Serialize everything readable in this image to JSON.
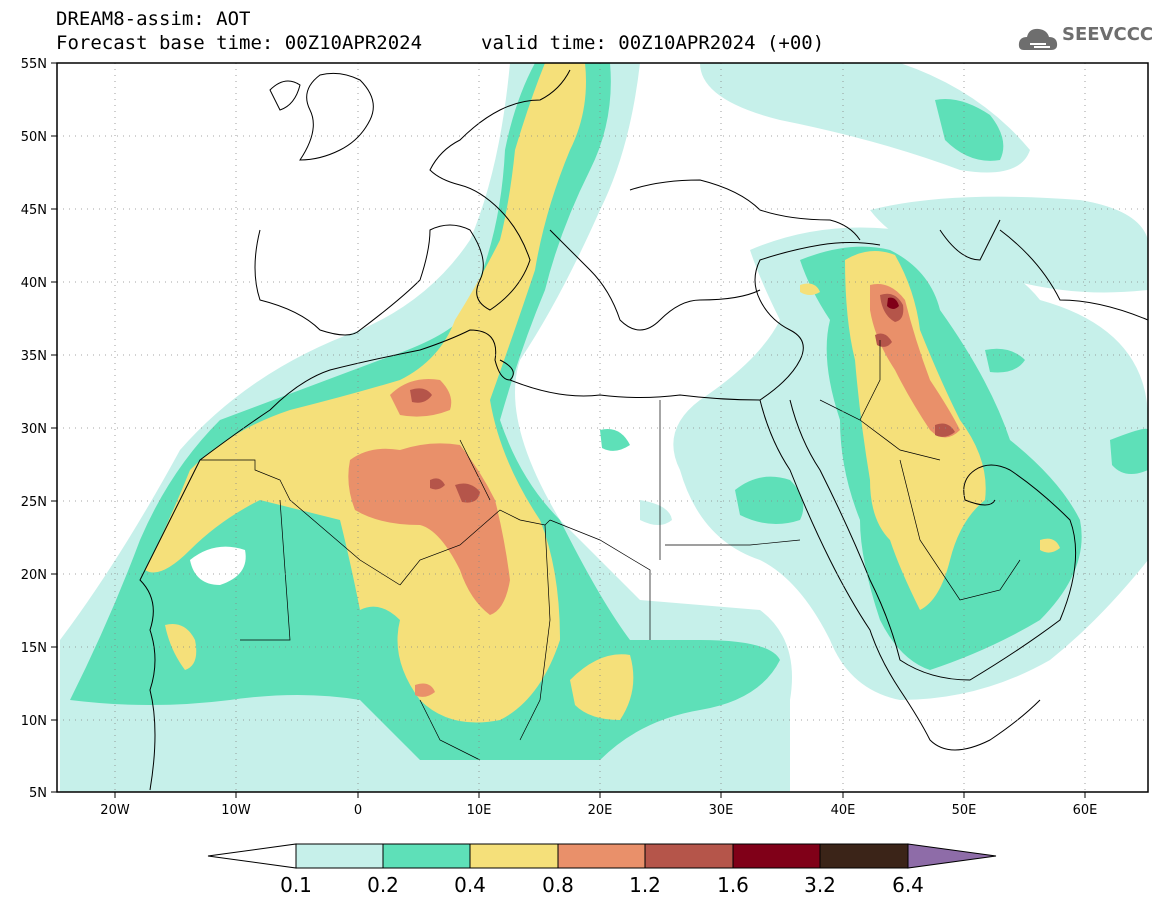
{
  "title": {
    "line1": "DREAM8-assim: AOT",
    "base_time": "Forecast base time: 00Z10APR2024",
    "valid_time": "valid time: 00Z10APR2024 (+00)"
  },
  "logo": {
    "text": "SEEVCCC",
    "icon": "cloud-icon"
  },
  "map": {
    "lon_range": [
      -25,
      65
    ],
    "lat_range": [
      5,
      55
    ],
    "lat_labels": [
      "55N",
      "50N",
      "45N",
      "40N",
      "35N",
      "30N",
      "25N",
      "20N",
      "15N",
      "10N",
      "5N"
    ],
    "lon_labels": [
      "20W",
      "10W",
      "0",
      "10E",
      "20E",
      "30E",
      "40E",
      "50E",
      "60E"
    ]
  },
  "colorbar": {
    "labels": [
      "0.1",
      "0.2",
      "0.4",
      "0.8",
      "1.2",
      "1.6",
      "3.2",
      "6.4"
    ],
    "colors": [
      "#ffffff",
      "#c6f0ea",
      "#5ee0b8",
      "#f5e07a",
      "#e9906a",
      "#b5554a",
      "#800018",
      "#3b2418",
      "#8e6ca8"
    ]
  }
}
